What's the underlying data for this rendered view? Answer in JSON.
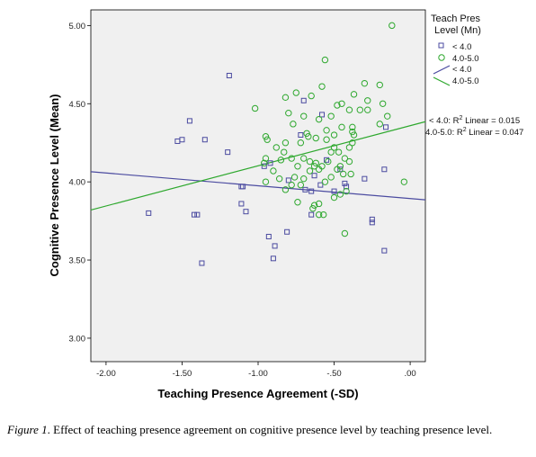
{
  "caption": {
    "label": "Figure 1",
    "text": ". Effect of teaching presence agreement on cognitive presence level by teaching presence level."
  },
  "chart_data": {
    "type": "scatter",
    "title": "",
    "xlabel": "Teaching Presence Agreement (-SD)",
    "ylabel": "Cognitive Presence Level (Mean)",
    "xlim": [
      -2.1,
      0.1
    ],
    "ylim": [
      2.85,
      5.1
    ],
    "x_ticks": [
      -2.0,
      -1.5,
      -1.0,
      -0.5,
      0.0
    ],
    "x_tick_labels": [
      "-2.00",
      "-1.50",
      "-1.00",
      "-.50",
      ".00"
    ],
    "y_ticks": [
      3.0,
      3.5,
      4.0,
      4.5,
      5.0
    ],
    "y_tick_labels": [
      "3.00",
      "3.50",
      "4.00",
      "4.50",
      "5.00"
    ],
    "grid": false,
    "legend": {
      "title_line1": "Teach Pres",
      "title_line2": "Level (Mn)",
      "placement": "top-right-outside",
      "entries": [
        {
          "label": "< 4.0",
          "kind": "square-marker",
          "color": "#4b4ba0"
        },
        {
          "label": "4.0-5.0",
          "kind": "circle-marker",
          "color": "#2ea82e"
        },
        {
          "label": "< 4.0",
          "kind": "line",
          "color": "#4b4ba0"
        },
        {
          "label": "4.0-5.0",
          "kind": "line",
          "color": "#2ea82e"
        }
      ]
    },
    "annotations": [
      {
        "prefix": "< 4.0: R",
        "sup": "2",
        "suffix": " Linear = 0.015"
      },
      {
        "prefix": "4.0-5.0: R",
        "sup": "2",
        "suffix": " Linear = 0.047"
      }
    ],
    "series": [
      {
        "name": "< 4.0",
        "marker": "square",
        "color": "#4b4ba0",
        "points": [
          [
            -1.19,
            4.68
          ],
          [
            -1.35,
            4.27
          ],
          [
            -1.45,
            4.39
          ],
          [
            -1.5,
            4.27
          ],
          [
            -1.53,
            4.26
          ],
          [
            -1.2,
            4.19
          ],
          [
            -1.72,
            3.8
          ],
          [
            -1.42,
            3.79
          ],
          [
            -1.4,
            3.79
          ],
          [
            -1.37,
            3.48
          ],
          [
            -1.11,
            3.86
          ],
          [
            -1.1,
            3.97
          ],
          [
            -1.11,
            3.97
          ],
          [
            -1.08,
            3.81
          ],
          [
            -0.93,
            3.65
          ],
          [
            -0.92,
            4.12
          ],
          [
            -0.89,
            3.59
          ],
          [
            -0.9,
            3.51
          ],
          [
            -0.81,
            3.68
          ],
          [
            -0.8,
            4.01
          ],
          [
            -0.69,
            3.95
          ],
          [
            -0.65,
            3.79
          ],
          [
            -0.63,
            4.04
          ],
          [
            -0.59,
            3.98
          ],
          [
            -0.65,
            3.94
          ],
          [
            -0.5,
            3.94
          ],
          [
            -0.43,
            3.99
          ],
          [
            -0.3,
            4.02
          ],
          [
            -0.25,
            3.74
          ],
          [
            -0.25,
            3.76
          ],
          [
            -0.17,
            3.56
          ],
          [
            -0.17,
            4.08
          ],
          [
            -0.16,
            4.35
          ],
          [
            -0.58,
            4.43
          ],
          [
            -0.72,
            4.3
          ],
          [
            -0.96,
            4.1
          ],
          [
            -0.7,
            4.52
          ],
          [
            -0.46,
            4.08
          ],
          [
            -0.55,
            4.14
          ],
          [
            -0.42,
            3.97
          ]
        ]
      },
      {
        "name": "4.0-5.0",
        "marker": "circle",
        "color": "#2ea82e",
        "points": [
          [
            -0.12,
            5.0
          ],
          [
            -0.56,
            4.78
          ],
          [
            -0.58,
            4.61
          ],
          [
            -0.65,
            4.55
          ],
          [
            -0.75,
            4.57
          ],
          [
            -0.82,
            4.54
          ],
          [
            -1.02,
            4.47
          ],
          [
            -0.8,
            4.44
          ],
          [
            -0.7,
            4.42
          ],
          [
            -0.6,
            4.4
          ],
          [
            -0.55,
            4.33
          ],
          [
            -0.52,
            4.42
          ],
          [
            -0.48,
            4.49
          ],
          [
            -0.45,
            4.5
          ],
          [
            -0.4,
            4.46
          ],
          [
            -0.37,
            4.56
          ],
          [
            -0.3,
            4.63
          ],
          [
            -0.28,
            4.52
          ],
          [
            -0.33,
            4.46
          ],
          [
            -0.28,
            4.46
          ],
          [
            -0.2,
            4.62
          ],
          [
            -0.18,
            4.5
          ],
          [
            -0.15,
            4.42
          ],
          [
            -0.2,
            4.37
          ],
          [
            -0.38,
            4.35
          ],
          [
            -0.45,
            4.35
          ],
          [
            -0.5,
            4.3
          ],
          [
            -0.55,
            4.27
          ],
          [
            -0.62,
            4.28
          ],
          [
            -0.67,
            4.29
          ],
          [
            -0.68,
            4.31
          ],
          [
            -0.72,
            4.25
          ],
          [
            -0.77,
            4.37
          ],
          [
            -0.82,
            4.25
          ],
          [
            -0.83,
            4.19
          ],
          [
            -0.88,
            4.22
          ],
          [
            -0.94,
            4.27
          ],
          [
            -0.95,
            4.29
          ],
          [
            -0.95,
            4.15
          ],
          [
            -0.96,
            4.12
          ],
          [
            -0.85,
            4.14
          ],
          [
            -0.78,
            4.15
          ],
          [
            -0.74,
            4.1
          ],
          [
            -0.7,
            4.15
          ],
          [
            -0.66,
            4.13
          ],
          [
            -0.62,
            4.12
          ],
          [
            -0.58,
            4.1
          ],
          [
            -0.54,
            4.13
          ],
          [
            -0.52,
            4.19
          ],
          [
            -0.5,
            4.22
          ],
          [
            -0.47,
            4.19
          ],
          [
            -0.43,
            4.15
          ],
          [
            -0.4,
            4.22
          ],
          [
            -0.38,
            4.25
          ],
          [
            -0.37,
            4.3
          ],
          [
            -0.38,
            4.32
          ],
          [
            -0.4,
            4.13
          ],
          [
            -0.44,
            4.05
          ],
          [
            -0.46,
            4.1
          ],
          [
            -0.48,
            4.08
          ],
          [
            -0.52,
            4.03
          ],
          [
            -0.56,
            4.0
          ],
          [
            -0.6,
            4.08
          ],
          [
            -0.63,
            4.1
          ],
          [
            -0.66,
            4.07
          ],
          [
            -0.7,
            4.02
          ],
          [
            -0.72,
            3.98
          ],
          [
            -0.76,
            4.03
          ],
          [
            -0.78,
            3.98
          ],
          [
            -0.82,
            3.95
          ],
          [
            -0.86,
            4.02
          ],
          [
            -0.9,
            4.07
          ],
          [
            -0.95,
            4.0
          ],
          [
            -0.74,
            3.87
          ],
          [
            -0.64,
            3.83
          ],
          [
            -0.6,
            3.86
          ],
          [
            -0.63,
            3.85
          ],
          [
            -0.6,
            3.79
          ],
          [
            -0.57,
            3.79
          ],
          [
            -0.5,
            3.9
          ],
          [
            -0.46,
            3.92
          ],
          [
            -0.42,
            3.94
          ],
          [
            -0.43,
            3.67
          ],
          [
            -0.04,
            4.0
          ],
          [
            -0.39,
            4.05
          ]
        ]
      }
    ],
    "fit_lines": [
      {
        "name": "< 4.0",
        "color": "#4b4ba0",
        "x": [
          -2.1,
          0.1
        ],
        "y": [
          4.065,
          3.885
        ]
      },
      {
        "name": "4.0-5.0",
        "color": "#2ea82e",
        "x": [
          -2.1,
          0.1
        ],
        "y": [
          3.82,
          4.385
        ]
      }
    ]
  }
}
